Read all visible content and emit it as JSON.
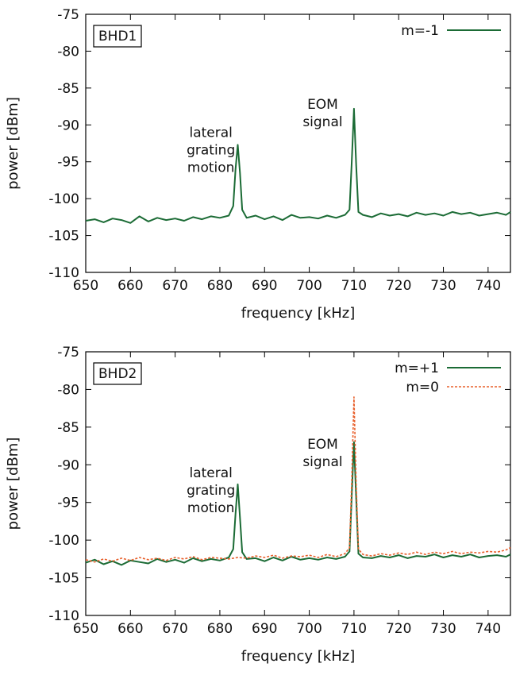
{
  "chart_data": [
    {
      "type": "line",
      "panel_label": "BHD1",
      "xlabel": "frequency [kHz]",
      "ylabel": "power [dBm]",
      "xlim": [
        650,
        745
      ],
      "ylim": [
        -110,
        -75
      ],
      "xticks": [
        650,
        660,
        670,
        680,
        690,
        700,
        710,
        720,
        730,
        740
      ],
      "yticks": [
        -110,
        -105,
        -100,
        -95,
        -90,
        -85,
        -80,
        -75
      ],
      "grid": false,
      "legend": "top-right",
      "annotations": [
        {
          "lines": [
            "lateral",
            "grating",
            "motion"
          ],
          "x": 678,
          "y": -94
        },
        {
          "lines": [
            "EOM",
            "signal"
          ],
          "x": 703,
          "y": -89
        }
      ],
      "series": [
        {
          "name": "m=-1",
          "color": "#1b6b35",
          "style": "solid",
          "x": [
            650,
            652,
            654,
            656,
            658,
            660,
            662,
            664,
            666,
            668,
            670,
            672,
            674,
            676,
            678,
            680,
            682,
            683,
            683.5,
            684,
            684.5,
            685,
            686,
            688,
            690,
            692,
            694,
            696,
            698,
            700,
            702,
            704,
            706,
            708,
            709,
            709.5,
            710,
            710.5,
            711,
            712,
            714,
            716,
            718,
            720,
            722,
            724,
            726,
            728,
            730,
            732,
            734,
            736,
            738,
            740,
            742,
            744,
            745
          ],
          "y": [
            -103.0,
            -102.8,
            -103.2,
            -102.7,
            -102.9,
            -103.3,
            -102.4,
            -103.1,
            -102.6,
            -102.9,
            -102.7,
            -103.0,
            -102.5,
            -102.8,
            -102.4,
            -102.6,
            -102.3,
            -101.0,
            -96.0,
            -92.7,
            -96.5,
            -101.5,
            -102.6,
            -102.3,
            -102.8,
            -102.4,
            -102.9,
            -102.2,
            -102.6,
            -102.5,
            -102.7,
            -102.3,
            -102.6,
            -102.2,
            -101.5,
            -95.0,
            -87.8,
            -95.5,
            -101.8,
            -102.2,
            -102.5,
            -102.0,
            -102.3,
            -102.1,
            -102.4,
            -101.9,
            -102.2,
            -102.0,
            -102.3,
            -101.8,
            -102.1,
            -101.9,
            -102.3,
            -102.1,
            -101.9,
            -102.2,
            -101.8
          ]
        }
      ]
    },
    {
      "type": "line",
      "panel_label": "BHD2",
      "xlabel": "frequency [kHz]",
      "ylabel": "power [dBm]",
      "xlim": [
        650,
        745
      ],
      "ylim": [
        -110,
        -75
      ],
      "xticks": [
        650,
        660,
        670,
        680,
        690,
        700,
        710,
        720,
        730,
        740
      ],
      "yticks": [
        -110,
        -105,
        -100,
        -95,
        -90,
        -85,
        -80,
        -75
      ],
      "grid": false,
      "legend": "top-right",
      "annotations": [
        {
          "lines": [
            "lateral",
            "grating",
            "motion"
          ],
          "x": 678,
          "y": -94
        },
        {
          "lines": [
            "EOM",
            "signal"
          ],
          "x": 703,
          "y": -89
        }
      ],
      "series": [
        {
          "name": "m=+1",
          "color": "#1b6b35",
          "style": "solid",
          "x": [
            650,
            652,
            654,
            656,
            658,
            660,
            662,
            664,
            666,
            668,
            670,
            672,
            674,
            676,
            678,
            680,
            682,
            683,
            683.5,
            684,
            684.5,
            685,
            686,
            688,
            690,
            692,
            694,
            696,
            698,
            700,
            702,
            704,
            706,
            708,
            709,
            709.5,
            710,
            710.5,
            711,
            712,
            714,
            716,
            718,
            720,
            722,
            724,
            726,
            728,
            730,
            732,
            734,
            736,
            738,
            740,
            742,
            744,
            745
          ],
          "y": [
            -103.0,
            -102.6,
            -103.2,
            -102.8,
            -103.3,
            -102.7,
            -102.9,
            -103.1,
            -102.5,
            -102.9,
            -102.6,
            -103.0,
            -102.4,
            -102.8,
            -102.5,
            -102.7,
            -102.3,
            -101.2,
            -96.5,
            -92.6,
            -97.0,
            -101.6,
            -102.5,
            -102.4,
            -102.8,
            -102.3,
            -102.7,
            -102.2,
            -102.6,
            -102.4,
            -102.6,
            -102.3,
            -102.5,
            -102.2,
            -101.5,
            -94.0,
            -87.0,
            -94.5,
            -101.8,
            -102.3,
            -102.4,
            -102.1,
            -102.3,
            -102.0,
            -102.4,
            -102.1,
            -102.2,
            -101.9,
            -102.3,
            -102.0,
            -102.2,
            -101.9,
            -102.3,
            -102.1,
            -102.0,
            -102.2,
            -101.9
          ]
        },
        {
          "name": "m=0",
          "color": "#e8602c",
          "style": "dashed",
          "x": [
            650,
            652,
            654,
            656,
            658,
            660,
            662,
            664,
            666,
            668,
            670,
            672,
            674,
            676,
            678,
            680,
            682,
            684,
            686,
            688,
            690,
            692,
            694,
            696,
            698,
            700,
            702,
            704,
            706,
            708,
            709,
            709.5,
            710,
            710.5,
            711,
            712,
            714,
            716,
            718,
            720,
            722,
            724,
            726,
            728,
            730,
            732,
            734,
            736,
            738,
            740,
            742,
            744,
            745
          ],
          "y": [
            -102.6,
            -102.9,
            -102.5,
            -102.8,
            -102.4,
            -102.7,
            -102.3,
            -102.6,
            -102.4,
            -102.7,
            -102.3,
            -102.5,
            -102.2,
            -102.6,
            -102.3,
            -102.4,
            -102.5,
            -102.3,
            -102.4,
            -102.1,
            -102.3,
            -102.0,
            -102.4,
            -102.1,
            -102.2,
            -102.0,
            -102.3,
            -101.9,
            -102.2,
            -101.8,
            -101.0,
            -92.0,
            -81.0,
            -92.5,
            -101.2,
            -101.9,
            -102.1,
            -101.8,
            -102.0,
            -101.7,
            -101.9,
            -101.6,
            -101.9,
            -101.6,
            -101.8,
            -101.5,
            -101.8,
            -101.6,
            -101.7,
            -101.5,
            -101.6,
            -101.3,
            -101.0
          ]
        }
      ]
    }
  ]
}
